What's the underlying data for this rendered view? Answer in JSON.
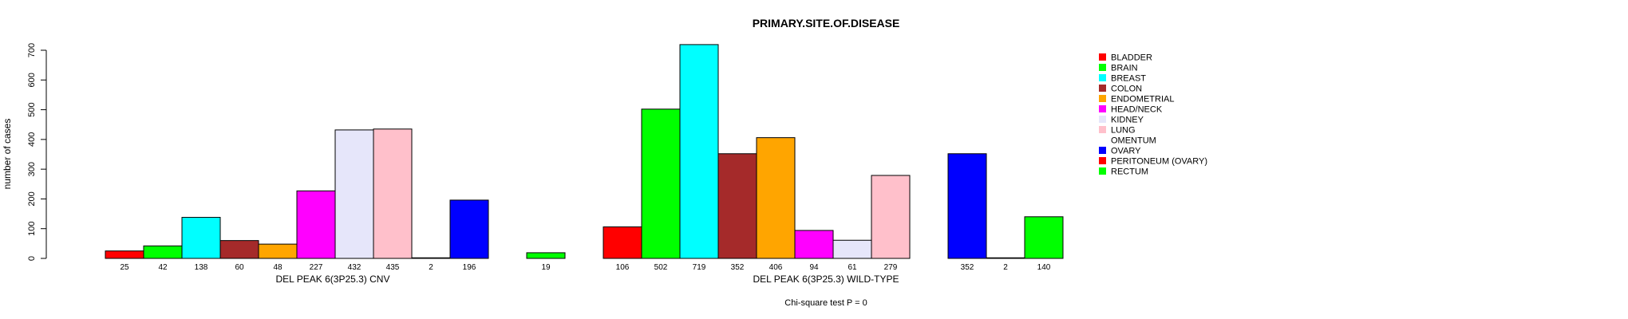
{
  "chart_data": {
    "type": "bar",
    "title": "PRIMARY.SITE.OF.DISEASE",
    "ylabel": "number of cases",
    "ylim": [
      0,
      700
    ],
    "yticks": [
      0,
      100,
      200,
      300,
      400,
      500,
      600,
      700
    ],
    "footnote": "Chi-square test P = 0",
    "legend_position": "right",
    "categories": [
      "BLADDER",
      "BRAIN",
      "BREAST",
      "COLON",
      "ENDOMETRIAL",
      "HEAD/NECK",
      "KIDNEY",
      "LUNG",
      "OMENTUM",
      "OVARY",
      "PERITONEUM (OVARY)",
      "RECTUM"
    ],
    "colors": [
      "#ff0000",
      "#00ff00",
      "#00ffff",
      "#a52a2a",
      "#ffa500",
      "#ff00ff",
      "#e6e6fa",
      "#ffc0cb",
      "#ffffff",
      "#0000ff",
      "#ff0000",
      "#00ff00"
    ],
    "groups": [
      {
        "xlabel": "DEL PEAK  6(3P25.3) CNV",
        "values": [
          25,
          42,
          138,
          60,
          48,
          227,
          432,
          435,
          2,
          196,
          0,
          19
        ],
        "count_labels": [
          "25",
          "42",
          "138",
          "60",
          "48",
          "227",
          "432",
          "435",
          "2",
          "196",
          "",
          "19"
        ]
      },
      {
        "xlabel": "DEL PEAK  6(3P25.3) WILD-TYPE",
        "values": [
          106,
          502,
          719,
          352,
          406,
          94,
          61,
          279,
          0,
          352,
          2,
          140
        ],
        "count_labels": [
          "106",
          "502",
          "719",
          "352",
          "406",
          "94",
          "61",
          "279",
          "",
          "352",
          "2",
          "140"
        ]
      }
    ]
  }
}
